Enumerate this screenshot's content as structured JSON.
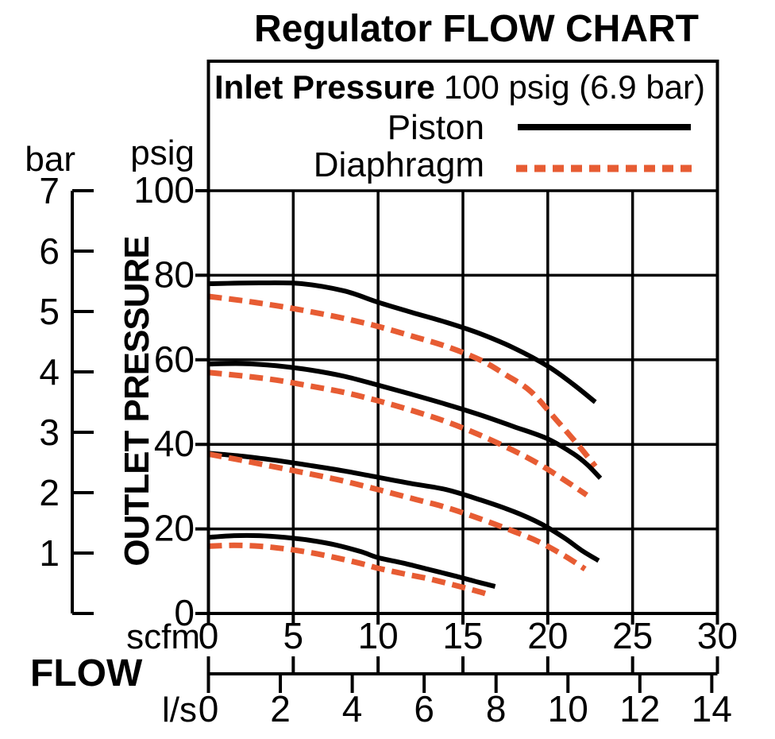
{
  "title": "Regulator FLOW CHART",
  "legend": {
    "condition_label": "Inlet Pressure",
    "condition_value": "100 psig (6.9 bar)",
    "entries": [
      {
        "label": "Piston",
        "line_style": "solid",
        "color": "#000000"
      },
      {
        "label": "Diaphragm",
        "line_style": "dashed",
        "color": "#E75C33"
      }
    ]
  },
  "axes": {
    "y_primary": {
      "unit": "psig"
    },
    "y_secondary": {
      "unit": "bar"
    },
    "x_primary": {
      "unit": "scfm"
    },
    "x_secondary": {
      "unit": "l/s"
    },
    "y_caption": "OUTLET PRESSURE",
    "x_caption": "FLOW"
  },
  "chart_data": {
    "type": "line",
    "title": "Regulator FLOW CHART",
    "annotation": "Inlet Pressure 100 psig (6.9 bar)",
    "xlabel": "FLOW",
    "ylabel": "OUTLET PRESSURE",
    "x_units": [
      "scfm",
      "l/s"
    ],
    "y_units": [
      "psig",
      "bar"
    ],
    "xlim": [
      0,
      30
    ],
    "ylim": [
      0,
      100
    ],
    "x_ticks_scfm": [
      0,
      5,
      10,
      15,
      20,
      25,
      30
    ],
    "x_ticks_ls": [
      0,
      2,
      4,
      6,
      8,
      10,
      12,
      14
    ],
    "y_ticks_psig": [
      100,
      80,
      60,
      40,
      20,
      0
    ],
    "y_ticks_bar": [
      7,
      6,
      5,
      4,
      3,
      2,
      1
    ],
    "scfm_per_ls": 2.119,
    "psig_per_bar": 14.5,
    "grid": {
      "on": true,
      "x_step_scfm": 5,
      "y_step_psig": 20
    },
    "legend_position": "top-inside",
    "styles": {
      "Piston": {
        "color": "#000000",
        "dash": null,
        "width": 6
      },
      "Diaphragm": {
        "color": "#E75C33",
        "dash": [
          17,
          9
        ],
        "width": 7
      }
    },
    "series": [
      {
        "id": "piston-1",
        "legend": "Piston",
        "points": [
          [
            0,
            78
          ],
          [
            3,
            78.2
          ],
          [
            5.5,
            78
          ],
          [
            8,
            76.3
          ],
          [
            10,
            73.6
          ],
          [
            12,
            71.2
          ],
          [
            14,
            68.9
          ],
          [
            16,
            66.2
          ],
          [
            18,
            62.8
          ],
          [
            20,
            58.5
          ],
          [
            21.5,
            54.2
          ],
          [
            22.8,
            50
          ]
        ]
      },
      {
        "id": "diaphragm-1",
        "legend": "Diaphragm",
        "points": [
          [
            0,
            75
          ],
          [
            2,
            74
          ],
          [
            4,
            72.8
          ],
          [
            6,
            71.4
          ],
          [
            8,
            69.8
          ],
          [
            10,
            67.9
          ],
          [
            12,
            65.6
          ],
          [
            14,
            63.2
          ],
          [
            16,
            60
          ],
          [
            17.5,
            56.5
          ],
          [
            19,
            52.5
          ],
          [
            20.5,
            45.8
          ],
          [
            21.8,
            39.8
          ],
          [
            22.8,
            34.8
          ]
        ]
      },
      {
        "id": "piston-2",
        "legend": "Piston",
        "points": [
          [
            0,
            59
          ],
          [
            2,
            59.1
          ],
          [
            4,
            58.6
          ],
          [
            6,
            57.6
          ],
          [
            8,
            56.1
          ],
          [
            10,
            54
          ],
          [
            12,
            51.8
          ],
          [
            14,
            49.5
          ],
          [
            16,
            47
          ],
          [
            18,
            44.2
          ],
          [
            20,
            41.3
          ],
          [
            21.5,
            37.8
          ],
          [
            22.3,
            35.3
          ],
          [
            23.1,
            32
          ]
        ]
      },
      {
        "id": "diaphragm-2",
        "legend": "Diaphragm",
        "points": [
          [
            0,
            57
          ],
          [
            2,
            56.2
          ],
          [
            4,
            55.2
          ],
          [
            6,
            53.8
          ],
          [
            8,
            52.3
          ],
          [
            10,
            50.3
          ],
          [
            12,
            48
          ],
          [
            14,
            45.4
          ],
          [
            16,
            42.2
          ],
          [
            18,
            38.5
          ],
          [
            19.5,
            35.3
          ],
          [
            21,
            31.5
          ],
          [
            22.3,
            28
          ]
        ]
      },
      {
        "id": "piston-3",
        "legend": "Piston",
        "points": [
          [
            0,
            37.9
          ],
          [
            2,
            37.2
          ],
          [
            4,
            36.2
          ],
          [
            6,
            35
          ],
          [
            8,
            33.7
          ],
          [
            10,
            32.2
          ],
          [
            12,
            30.7
          ],
          [
            14,
            29.3
          ],
          [
            16,
            26.9
          ],
          [
            18,
            24.1
          ],
          [
            19.6,
            21.2
          ],
          [
            21,
            17.8
          ],
          [
            22,
            14.9
          ],
          [
            23,
            12.5
          ]
        ]
      },
      {
        "id": "diaphragm-3",
        "legend": "Diaphragm",
        "points": [
          [
            0,
            37.7
          ],
          [
            2,
            36.2
          ],
          [
            4,
            34.6
          ],
          [
            6,
            33
          ],
          [
            8,
            31.3
          ],
          [
            10,
            29.3
          ],
          [
            12,
            27.2
          ],
          [
            14,
            25.1
          ],
          [
            16,
            22.4
          ],
          [
            18,
            19.4
          ],
          [
            19.5,
            16.9
          ],
          [
            21,
            13.6
          ],
          [
            22.2,
            10.5
          ]
        ]
      },
      {
        "id": "piston-4",
        "legend": "Piston",
        "points": [
          [
            0,
            18
          ],
          [
            1.5,
            18.4
          ],
          [
            3,
            18.4
          ],
          [
            4.5,
            18
          ],
          [
            6,
            17.3
          ],
          [
            7.5,
            16.2
          ],
          [
            9,
            14.6
          ],
          [
            10,
            13.2
          ],
          [
            11.5,
            11.9
          ],
          [
            13,
            10.4
          ],
          [
            14.5,
            8.9
          ],
          [
            16,
            7.3
          ],
          [
            16.9,
            6.4
          ]
        ]
      },
      {
        "id": "diaphragm-4",
        "legend": "Diaphragm",
        "points": [
          [
            0,
            15.9
          ],
          [
            1.5,
            16.1
          ],
          [
            3,
            15.9
          ],
          [
            4.5,
            15.3
          ],
          [
            6,
            14.4
          ],
          [
            7.5,
            13.2
          ],
          [
            9,
            11.8
          ],
          [
            10,
            10.7
          ],
          [
            11.5,
            9.4
          ],
          [
            13,
            8.2
          ],
          [
            14.5,
            6.7
          ],
          [
            16,
            5.1
          ],
          [
            16.6,
            4.3
          ]
        ]
      }
    ]
  }
}
